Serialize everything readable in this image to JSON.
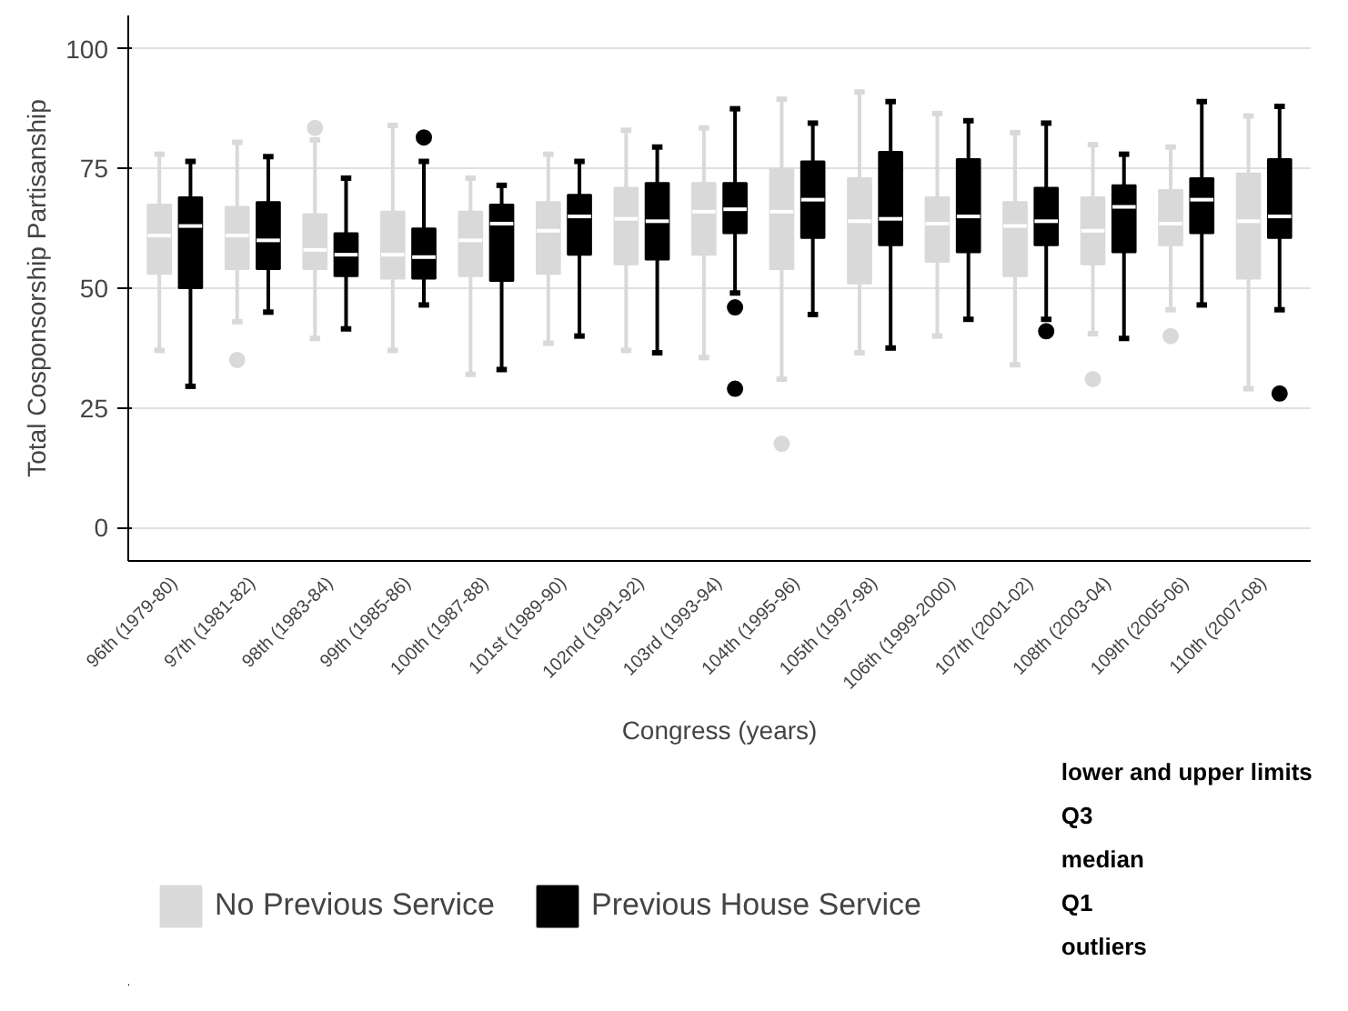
{
  "chart_data": {
    "type": "box",
    "xlabel": "Congress (years)",
    "ylabel": "Total Cosponsorship Partisanship",
    "categories": [
      "96th (1979-80)",
      "97th (1981-82)",
      "98th (1983-84)",
      "99th (1985-86)",
      "100th (1987-88)",
      "101st (1989-90)",
      "102nd (1991-92)",
      "103rd (1993-94)",
      "104th (1995-96)",
      "105th (1997-98)",
      "106th (1999-2000)",
      "107th (2001-02)",
      "108th (2003-04)",
      "109th (2005-06)",
      "110th (2007-08)"
    ],
    "ylim": [
      -7,
      107
    ],
    "yticks": [
      0,
      25,
      50,
      75,
      100
    ],
    "grid": "y",
    "legend": "bottom",
    "series": [
      {
        "name": "No Previous Service",
        "color": "#d9d9d9",
        "boxes": [
          {
            "low": 37,
            "q1": 53,
            "median": 61,
            "q3": 67.5,
            "high": 78
          },
          {
            "low": 43,
            "q1": 54,
            "median": 61,
            "q3": 67,
            "high": 80.5,
            "outliers": [
              35
            ]
          },
          {
            "low": 39.5,
            "q1": 54,
            "median": 58,
            "q3": 65.5,
            "high": 81,
            "outliers": [
              83.5
            ]
          },
          {
            "low": 37,
            "q1": 52,
            "median": 57,
            "q3": 66,
            "high": 84
          },
          {
            "low": 32,
            "q1": 52.5,
            "median": 60,
            "q3": 66,
            "high": 73
          },
          {
            "low": 38.5,
            "q1": 53,
            "median": 62,
            "q3": 68,
            "high": 78
          },
          {
            "low": 37,
            "q1": 55,
            "median": 64.5,
            "q3": 71,
            "high": 83
          },
          {
            "low": 35.5,
            "q1": 57,
            "median": 66,
            "q3": 72,
            "high": 83.5
          },
          {
            "low": 31,
            "q1": 54,
            "median": 66,
            "q3": 75,
            "high": 89.5,
            "outliers": [
              17.5
            ]
          },
          {
            "low": 36.5,
            "q1": 51,
            "median": 64,
            "q3": 73,
            "high": 91
          },
          {
            "low": 40,
            "q1": 55.5,
            "median": 63.5,
            "q3": 69,
            "high": 86.5
          },
          {
            "low": 34,
            "q1": 52.5,
            "median": 63,
            "q3": 68,
            "high": 82.5
          },
          {
            "low": 40.5,
            "q1": 55,
            "median": 62,
            "q3": 69,
            "high": 80,
            "outliers": [
              31
            ]
          },
          {
            "low": 45.5,
            "q1": 59,
            "median": 63.5,
            "q3": 70.5,
            "high": 79.5,
            "outliers": [
              40
            ]
          },
          {
            "low": 29,
            "q1": 52,
            "median": 64,
            "q3": 74,
            "high": 86
          }
        ]
      },
      {
        "name": "Previous House Service",
        "color": "#000000",
        "boxes": [
          {
            "low": 29.5,
            "q1": 50,
            "median": 63,
            "q3": 69,
            "high": 76.5
          },
          {
            "low": 45,
            "q1": 54,
            "median": 60,
            "q3": 68,
            "high": 77.5
          },
          {
            "low": 41.5,
            "q1": 52.5,
            "median": 57,
            "q3": 61.5,
            "high": 73
          },
          {
            "low": 46.5,
            "q1": 52,
            "median": 56.5,
            "q3": 62.5,
            "high": 76.5,
            "outliers": [
              81.5
            ]
          },
          {
            "low": 33,
            "q1": 51.5,
            "median": 63.5,
            "q3": 67.5,
            "high": 71.5
          },
          {
            "low": 40,
            "q1": 57,
            "median": 65,
            "q3": 69.5,
            "high": 76.5
          },
          {
            "low": 36.5,
            "q1": 56,
            "median": 64,
            "q3": 72,
            "high": 79.5
          },
          {
            "low": 49,
            "q1": 61.5,
            "median": 66.5,
            "q3": 72,
            "high": 87.5,
            "outliers": [
              46,
              29
            ]
          },
          {
            "low": 44.5,
            "q1": 60.5,
            "median": 68.5,
            "q3": 76.5,
            "high": 84.5
          },
          {
            "low": 37.5,
            "q1": 59,
            "median": 64.5,
            "q3": 78.5,
            "high": 89
          },
          {
            "low": 43.5,
            "q1": 57.5,
            "median": 65,
            "q3": 77,
            "high": 85
          },
          {
            "low": 43.5,
            "q1": 59,
            "median": 64,
            "q3": 71,
            "high": 84.5,
            "outliers": [
              41
            ]
          },
          {
            "low": 39.5,
            "q1": 57.5,
            "median": 67,
            "q3": 71.5,
            "high": 78
          },
          {
            "low": 46.5,
            "q1": 61.5,
            "median": 68.5,
            "q3": 73,
            "high": 89
          },
          {
            "low": 45.5,
            "q1": 60.5,
            "median": 65,
            "q3": 77,
            "high": 88,
            "outliers": [
              28
            ]
          }
        ]
      }
    ],
    "annotations": [
      "lower and upper limits",
      "Q3",
      "median",
      "Q1",
      "outliers"
    ]
  }
}
